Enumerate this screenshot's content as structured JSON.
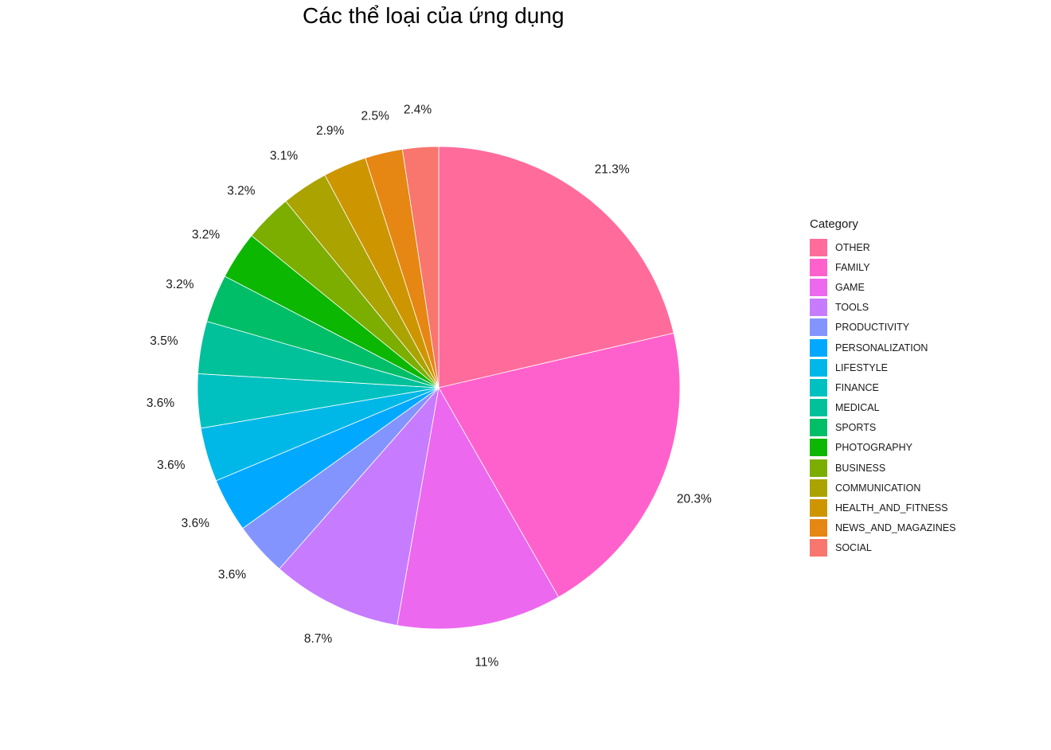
{
  "chart_data": {
    "type": "pie",
    "title": "Các thể loại của ứng dụng",
    "legend_title": "Category",
    "legend_position": "right",
    "slices": [
      {
        "name": "OTHER",
        "value": 21.3,
        "label": "21.3%",
        "color": "#FF6C9C"
      },
      {
        "name": "FAMILY",
        "value": 20.3,
        "label": "20.3%",
        "color": "#FF61CC"
      },
      {
        "name": "GAME",
        "value": 11.0,
        "label": "11%",
        "color": "#EC69EF"
      },
      {
        "name": "TOOLS",
        "value": 8.7,
        "label": "8.7%",
        "color": "#C77CFF"
      },
      {
        "name": "PRODUCTIVITY",
        "value": 3.6,
        "label": "3.6%",
        "color": "#8494FF"
      },
      {
        "name": "PERSONALIZATION",
        "value": 3.6,
        "label": "3.6%",
        "color": "#00A9FF"
      },
      {
        "name": "LIFESTYLE",
        "value": 3.6,
        "label": "3.6%",
        "color": "#00B8E7"
      },
      {
        "name": "FINANCE",
        "value": 3.6,
        "label": "3.6%",
        "color": "#00C1C0"
      },
      {
        "name": "MEDICAL",
        "value": 3.5,
        "label": "3.5%",
        "color": "#00C19A"
      },
      {
        "name": "SPORTS",
        "value": 3.2,
        "label": "3.2%",
        "color": "#00BE67"
      },
      {
        "name": "PHOTOGRAPHY",
        "value": 3.2,
        "label": "3.2%",
        "color": "#0CB702"
      },
      {
        "name": "BUSINESS",
        "value": 3.2,
        "label": "3.2%",
        "color": "#7CAE00"
      },
      {
        "name": "COMMUNICATION",
        "value": 3.1,
        "label": "3.1%",
        "color": "#ABA300"
      },
      {
        "name": "HEALTH_AND_FITNESS",
        "value": 2.9,
        "label": "2.9%",
        "color": "#CD9600"
      },
      {
        "name": "NEWS_AND_MAGAZINES",
        "value": 2.5,
        "label": "2.5%",
        "color": "#E68613"
      },
      {
        "name": "SOCIAL",
        "value": 2.4,
        "label": "2.4%",
        "color": "#F8766D"
      }
    ]
  }
}
